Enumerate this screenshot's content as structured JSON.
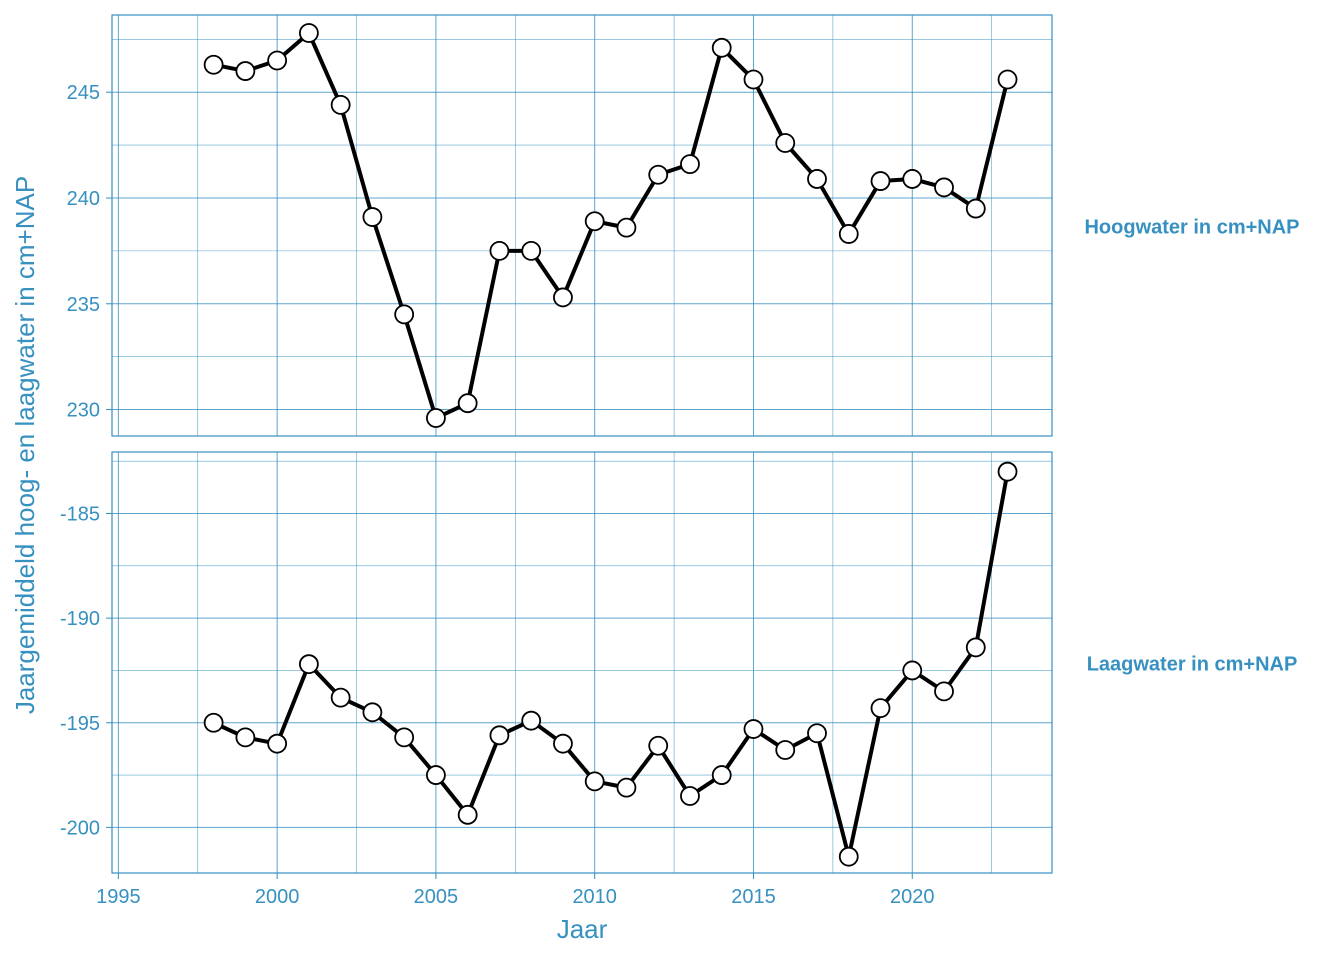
{
  "chart_data": {
    "type": "line",
    "xlabel": "Jaar",
    "ylabel": "Jaargemiddeld hoog- en laagwater in cm+NAP",
    "xlim": [
      1994.8,
      2024.4
    ],
    "x_ticks": [
      1995,
      2000,
      2005,
      2010,
      2015,
      2020
    ],
    "grid": true,
    "accent_color": "#3690c0",
    "line_color": "#000000",
    "marker": "open-circle",
    "panels": [
      {
        "strip_label": "Hoogwater in cm+NAP",
        "ylim": [
          228.75,
          248.65
        ],
        "y_ticks": [
          230,
          235,
          240,
          245
        ],
        "x": [
          1998,
          1999,
          2000,
          2001,
          2002,
          2003,
          2004,
          2005,
          2006,
          2007,
          2008,
          2009,
          2010,
          2011,
          2012,
          2013,
          2014,
          2015,
          2016,
          2017,
          2018,
          2019,
          2020,
          2021,
          2022,
          2023
        ],
        "values": [
          246.3,
          246.0,
          246.5,
          247.8,
          244.4,
          239.1,
          234.5,
          229.6,
          230.3,
          237.5,
          237.5,
          235.3,
          238.9,
          238.6,
          241.1,
          241.6,
          247.1,
          245.6,
          242.6,
          240.9,
          238.3,
          240.8,
          240.9,
          240.5,
          239.5,
          245.6
        ]
      },
      {
        "strip_label": "Laagwater in cm+NAP",
        "ylim": [
          -202.18,
          -182.06
        ],
        "y_ticks": [
          -200,
          -195,
          -190,
          -185
        ],
        "x": [
          1998,
          1999,
          2000,
          2001,
          2002,
          2003,
          2004,
          2005,
          2006,
          2007,
          2008,
          2009,
          2010,
          2011,
          2012,
          2013,
          2014,
          2015,
          2016,
          2017,
          2018,
          2019,
          2020,
          2021,
          2022,
          2023
        ],
        "values": [
          -195.0,
          -195.7,
          -196.0,
          -192.2,
          -193.8,
          -194.5,
          -195.7,
          -197.5,
          -199.4,
          -195.6,
          -194.9,
          -196.0,
          -197.8,
          -198.1,
          -196.1,
          -198.5,
          -197.5,
          -195.3,
          -196.3,
          -195.5,
          -201.4,
          -194.3,
          -192.5,
          -193.5,
          -191.4,
          -183.0
        ]
      }
    ]
  }
}
